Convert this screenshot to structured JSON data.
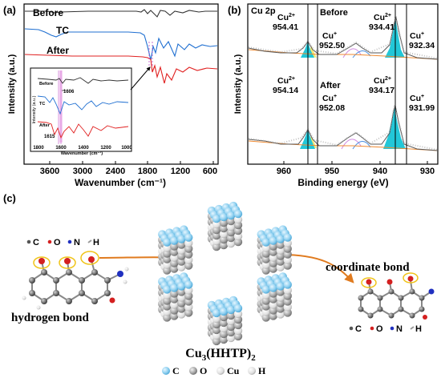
{
  "panel_a": {
    "label": "(a)",
    "ylabel": "Intensity (a.u.)",
    "xlabel": "Wavenumber (cm⁻¹)",
    "xticks": [
      "3600",
      "3000",
      "2400",
      "1800",
      "1200",
      "600"
    ],
    "curve_labels": [
      "Before",
      "TC",
      "After"
    ],
    "inset": {
      "ylabel": "Intensity (a.u.)",
      "xlabel": "Wavenumber (cm⁻¹)",
      "xticks": [
        "1800",
        "1600",
        "1400",
        "1200",
        "1000"
      ],
      "curve_labels": [
        "Before",
        "TC",
        "After"
      ],
      "annot_1606": "1606",
      "annot_1615": "1615"
    }
  },
  "panel_b": {
    "label": "(b)",
    "title": "Cu 2p",
    "ylabel": "Intensity (a.u.)",
    "xlabel": "Binding energy (eV)",
    "xticks": [
      "960",
      "950",
      "940",
      "930"
    ],
    "before_label": "Before",
    "after_label": "After",
    "peaks_before": [
      {
        "ion": "Cu",
        "charge": "2+",
        "value": "954.41"
      },
      {
        "ion": "Cu",
        "charge": "+",
        "value": "952.50"
      },
      {
        "ion": "Cu",
        "charge": "2+",
        "value": "934.41"
      },
      {
        "ion": "Cu",
        "charge": "+",
        "value": "932.34"
      }
    ],
    "peaks_after": [
      {
        "ion": "Cu",
        "charge": "2+",
        "value": "954.14"
      },
      {
        "ion": "Cu",
        "charge": "+",
        "value": "952.08"
      },
      {
        "ion": "Cu",
        "charge": "2+",
        "value": "934.17"
      },
      {
        "ion": "Cu",
        "charge": "+",
        "value": "931.99"
      }
    ]
  },
  "panel_c": {
    "label": "(c)",
    "hydrogen_bond": "hydrogen bond",
    "coordinate_bond": "coordinate bond",
    "mof_name_main": "Cu",
    "mof_name_sub3": "3",
    "mof_name_mid": "(HHTP)",
    "mof_name_sub2": "2",
    "legend_left": [
      {
        "symbol": "C",
        "color": "#555555"
      },
      {
        "symbol": "O",
        "color": "#d42020"
      },
      {
        "symbol": "N",
        "color": "#2030c0"
      },
      {
        "symbol": "H",
        "color": "#bbbbbb"
      }
    ],
    "legend_bottom": [
      {
        "symbol": "C",
        "color": "#7fc7ea"
      },
      {
        "symbol": "O",
        "color": "#8c8c8c"
      },
      {
        "symbol": "Cu",
        "color": "#d8d8d8"
      },
      {
        "symbol": "H",
        "color": "#e8e8e8"
      }
    ],
    "colors": {
      "mof_blue": "#7fc7ea",
      "mof_gray": "#9a9a9a",
      "arrow": "#e07b1f",
      "highlight": "#f0c419"
    }
  }
}
